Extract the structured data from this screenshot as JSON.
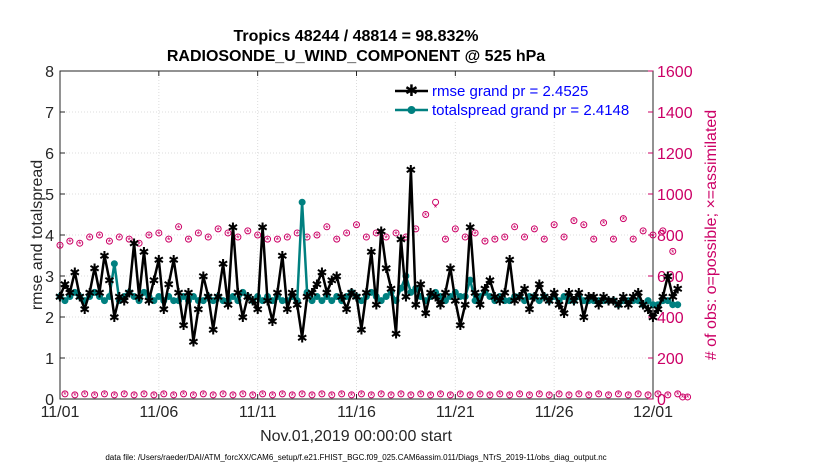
{
  "colors": {
    "rmse": "#000000",
    "spread": "#008080",
    "obs": "#cc0066",
    "grid": "#dcdcdc",
    "axis": "#262626",
    "legend_text": "#0000ff"
  },
  "chart_data": {
    "type": "line",
    "title": "Tropics 48244 / 48814 = 98.832%",
    "subtitle": "RADIOSONDE_U_WIND_COMPONENT @ 525 hPa",
    "xlabel": "Nov.01,2019 00:00:00 start",
    "ylabel": "rmse and totalspread",
    "ylabel_right": "# of obs: o=possible; ×=assimilated",
    "xlim": [
      0,
      30
    ],
    "ylim": [
      0,
      8
    ],
    "ylim_right": [
      0,
      1600
    ],
    "xticks": [
      0,
      5,
      10,
      15,
      20,
      25,
      30
    ],
    "xtick_labels": [
      "11/01",
      "11/06",
      "11/11",
      "11/16",
      "11/21",
      "11/26",
      "12/01"
    ],
    "yticks": [
      "0",
      "1",
      "2",
      "3",
      "4",
      "5",
      "6",
      "7",
      "8"
    ],
    "yticks_right": [
      "0",
      "200",
      "400",
      "600",
      "800",
      "1000",
      "1200",
      "1400",
      "1600"
    ],
    "legend_position": "top-right",
    "step_days": 0.25,
    "series": [
      {
        "name": "rmse",
        "legend": "rmse grand pr = 2.4525",
        "values": [
          2.5,
          2.8,
          2.6,
          3.1,
          2.5,
          2.2,
          2.6,
          3.2,
          2.6,
          3.5,
          2.9,
          2.0,
          2.5,
          2.4,
          2.6,
          3.8,
          2.5,
          3.6,
          2.4,
          2.9,
          3.4,
          2.2,
          2.8,
          3.4,
          2.6,
          1.8,
          2.6,
          1.4,
          2.2,
          3.0,
          2.5,
          1.7,
          2.5,
          3.3,
          2.3,
          4.2,
          2.6,
          2.0,
          2.5,
          2.4,
          2.2,
          4.2,
          2.4,
          1.9,
          2.6,
          3.5,
          2.2,
          2.6,
          2.3,
          1.5,
          2.5,
          2.6,
          2.8,
          3.1,
          2.6,
          2.9,
          3.0,
          2.5,
          2.2,
          2.6,
          2.5,
          1.7,
          2.6,
          3.6,
          2.3,
          4.1,
          3.2,
          2.7,
          1.6,
          3.9,
          2.5,
          5.6,
          2.3,
          2.8,
          2.1,
          2.6,
          2.5,
          2.3,
          2.6,
          3.2,
          2.4,
          1.8,
          2.3,
          4.2,
          2.6,
          2.3,
          2.7,
          2.9,
          2.5,
          2.4,
          2.6,
          3.4,
          2.4,
          2.5,
          2.7,
          2.2,
          2.5,
          2.8,
          2.5,
          2.4,
          2.6,
          2.3,
          2.1,
          2.6,
          2.4,
          2.6,
          2.0,
          2.5,
          2.5,
          2.3,
          2.5,
          2.4,
          2.4,
          2.3,
          2.5,
          2.3,
          2.5,
          2.6,
          2.3,
          2.2,
          2.0,
          2.2,
          2.5,
          3.0,
          2.5,
          2.7
        ]
      },
      {
        "name": "totalspread",
        "legend": "totalspread grand pr = 2.4148",
        "values": [
          2.5,
          2.4,
          2.5,
          2.6,
          2.5,
          2.4,
          2.5,
          2.6,
          2.5,
          2.4,
          2.5,
          3.3,
          2.4,
          2.5,
          2.6,
          2.5,
          2.4,
          2.6,
          2.5,
          2.4,
          2.5,
          2.4,
          2.5,
          2.4,
          2.4,
          2.5,
          2.4,
          2.5,
          2.4,
          2.4,
          2.5,
          2.4,
          2.5,
          2.4,
          2.4,
          2.5,
          2.4,
          2.6,
          2.5,
          2.4,
          2.5,
          2.4,
          2.5,
          2.4,
          2.5,
          2.4,
          2.4,
          2.5,
          2.4,
          4.8,
          2.6,
          2.4,
          2.5,
          2.4,
          2.5,
          2.4,
          2.5,
          2.4,
          2.5,
          2.6,
          2.5,
          2.4,
          2.5,
          2.6,
          2.5,
          2.4,
          2.5,
          2.6,
          2.4,
          2.7,
          3.0,
          2.6,
          2.7,
          2.5,
          2.4,
          2.5,
          2.6,
          2.5,
          2.4,
          2.5,
          2.6,
          2.5,
          2.5,
          2.9,
          2.4,
          2.5,
          2.6,
          2.5,
          2.4,
          2.5,
          2.4,
          2.4,
          2.5,
          2.5,
          2.4,
          2.5,
          2.5,
          2.4,
          2.5,
          2.4,
          2.5,
          2.4,
          2.5,
          2.4,
          2.4,
          2.5,
          2.4,
          2.4,
          2.4,
          2.4,
          2.4,
          2.4,
          2.4,
          2.3,
          2.4,
          2.4,
          2.4,
          2.4,
          2.3,
          2.4,
          2.3,
          2.3,
          2.4,
          2.4,
          2.3,
          2.3
        ]
      },
      {
        "name": "obs_possible",
        "axis": "right",
        "values": [
          750,
          25,
          770,
          20,
          760,
          25,
          790,
          20,
          800,
          25,
          770,
          20,
          790,
          25,
          780,
          20,
          760,
          25,
          800,
          20,
          810,
          25,
          780,
          20,
          840,
          25,
          780,
          20,
          810,
          25,
          790,
          20,
          830,
          25,
          810,
          20,
          790,
          25,
          820,
          20,
          800,
          25,
          780,
          20,
          780,
          25,
          790,
          20,
          810,
          25,
          790,
          20,
          800,
          25,
          840,
          20,
          780,
          25,
          810,
          20,
          850,
          25,
          790,
          20,
          810,
          25,
          790,
          20,
          810,
          25,
          790,
          20,
          830,
          25,
          900,
          20,
          960,
          25,
          780,
          20,
          830,
          25,
          790,
          20,
          810,
          25,
          770,
          20,
          780,
          25,
          790,
          20,
          840,
          25,
          790,
          20,
          830,
          25,
          780,
          20,
          850,
          25,
          790,
          20,
          870,
          25,
          850,
          20,
          780,
          25,
          860,
          20,
          780,
          25,
          880,
          20,
          780,
          25,
          820,
          20,
          800,
          25,
          820,
          20,
          720,
          25,
          10,
          10
        ]
      },
      {
        "name": "obs_assimilated",
        "axis": "right",
        "values": [
          745,
          22,
          765,
          18,
          755,
          22,
          785,
          18,
          795,
          22,
          765,
          18,
          785,
          22,
          775,
          18,
          755,
          22,
          795,
          18,
          805,
          22,
          775,
          18,
          835,
          22,
          775,
          18,
          805,
          22,
          785,
          18,
          825,
          22,
          805,
          18,
          785,
          22,
          815,
          18,
          795,
          22,
          775,
          18,
          775,
          22,
          785,
          18,
          805,
          22,
          785,
          18,
          795,
          22,
          835,
          18,
          775,
          22,
          805,
          18,
          845,
          22,
          785,
          18,
          805,
          22,
          785,
          18,
          805,
          22,
          785,
          18,
          825,
          22,
          895,
          18,
          935,
          22,
          775,
          18,
          825,
          22,
          785,
          18,
          805,
          22,
          765,
          18,
          775,
          22,
          785,
          18,
          835,
          22,
          785,
          18,
          825,
          22,
          775,
          18,
          845,
          22,
          785,
          18,
          865,
          22,
          845,
          18,
          775,
          22,
          855,
          18,
          775,
          22,
          875,
          18,
          775,
          22,
          815,
          18,
          795,
          22,
          815,
          18,
          715,
          22,
          8,
          8
        ]
      }
    ]
  },
  "footer": "data file: /Users/raeder/DAI/ATM_forcXX/CAM6_setup/f.e21.FHIST_BGC.f09_025.CAM6assim.011/Diags_NTrS_2019-11/obs_diag_output.nc"
}
